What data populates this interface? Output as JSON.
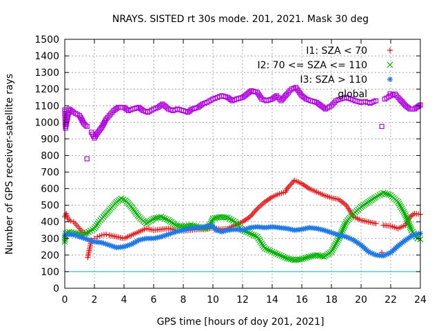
{
  "chart_data": {
    "type": "scatter",
    "title": "NRAYS. SISTED rt 30s mode. 201, 2021. Mask 30 deg",
    "xlabel": "GPS time [hours of doy 201, 2021]",
    "ylabel": "Number of GPS receiver-satellite rays",
    "xlim": [
      0,
      24
    ],
    "ylim": [
      0,
      1500
    ],
    "xticks": [
      0,
      2,
      4,
      6,
      8,
      10,
      12,
      14,
      16,
      18,
      20,
      22,
      24
    ],
    "yticks": [
      0,
      100,
      200,
      300,
      400,
      500,
      600,
      700,
      800,
      900,
      1000,
      1100,
      1200,
      1300,
      1400,
      1500
    ],
    "grid": true,
    "legend_position": "top-right",
    "reference_line": {
      "y": 100,
      "color": "#00c0c0"
    },
    "series": [
      {
        "name": "I1: SZA < 70",
        "marker": "plus",
        "color": "#e41a1c",
        "points": [
          [
            0,
            430
          ],
          [
            0.1,
            450
          ],
          [
            0.2,
            420
          ],
          [
            0.4,
            405
          ],
          [
            0.6,
            400
          ],
          [
            0.8,
            380
          ],
          [
            1.0,
            360
          ],
          [
            1.2,
            340
          ],
          [
            1.5,
            330
          ],
          [
            1.55,
            185
          ],
          [
            1.8,
            290
          ],
          [
            2.0,
            300
          ],
          [
            2.2,
            310
          ],
          [
            2.5,
            320
          ],
          [
            2.8,
            325
          ],
          [
            3.0,
            320
          ],
          [
            3.5,
            310
          ],
          [
            4.0,
            300
          ],
          [
            4.5,
            320
          ],
          [
            5.0,
            340
          ],
          [
            5.5,
            360
          ],
          [
            6.0,
            350
          ],
          [
            6.5,
            355
          ],
          [
            7.0,
            360
          ],
          [
            7.5,
            350
          ],
          [
            8.0,
            345
          ],
          [
            8.5,
            350
          ],
          [
            9.0,
            355
          ],
          [
            9.5,
            355
          ],
          [
            10.0,
            365
          ],
          [
            10.5,
            355
          ],
          [
            11.0,
            360
          ],
          [
            11.5,
            380
          ],
          [
            12.0,
            400
          ],
          [
            12.5,
            430
          ],
          [
            13.0,
            480
          ],
          [
            13.5,
            520
          ],
          [
            14.0,
            550
          ],
          [
            14.5,
            570
          ],
          [
            14.9,
            580
          ],
          [
            15.0,
            600
          ],
          [
            15.5,
            650
          ],
          [
            16.0,
            630
          ],
          [
            16.5,
            600
          ],
          [
            17.0,
            580
          ],
          [
            17.5,
            560
          ],
          [
            18.0,
            545
          ],
          [
            18.5,
            535
          ],
          [
            19.0,
            500
          ],
          [
            19.5,
            430
          ],
          [
            20.0,
            410
          ],
          [
            20.5,
            400
          ],
          [
            21.0,
            390
          ],
          [
            21.4,
            215
          ],
          [
            21.5,
            380
          ],
          [
            22.0,
            375
          ],
          [
            22.5,
            360
          ],
          [
            23.0,
            380
          ],
          [
            23.3,
            430
          ],
          [
            23.6,
            450
          ],
          [
            24.0,
            445
          ]
        ]
      },
      {
        "name": "I2: 70 <= SZA <= 110",
        "marker": "cross",
        "color": "#00b000",
        "points": [
          [
            0,
            280
          ],
          [
            0.05,
            330
          ],
          [
            0.3,
            340
          ],
          [
            0.6,
            335
          ],
          [
            0.9,
            330
          ],
          [
            1.2,
            320
          ],
          [
            1.6,
            340
          ],
          [
            2.0,
            360
          ],
          [
            2.3,
            400
          ],
          [
            2.6,
            430
          ],
          [
            3.0,
            470
          ],
          [
            3.5,
            520
          ],
          [
            3.8,
            540
          ],
          [
            4.1,
            530
          ],
          [
            4.5,
            490
          ],
          [
            5.0,
            430
          ],
          [
            5.5,
            390
          ],
          [
            6.0,
            420
          ],
          [
            6.5,
            430
          ],
          [
            7.0,
            410
          ],
          [
            7.5,
            380
          ],
          [
            8.0,
            370
          ],
          [
            8.5,
            380
          ],
          [
            9.0,
            370
          ],
          [
            9.5,
            360
          ],
          [
            9.8,
            380
          ],
          [
            10.0,
            420
          ],
          [
            10.5,
            430
          ],
          [
            11.0,
            425
          ],
          [
            11.5,
            400
          ],
          [
            12.0,
            350
          ],
          [
            12.5,
            330
          ],
          [
            13.0,
            310
          ],
          [
            13.5,
            240
          ],
          [
            14.0,
            220
          ],
          [
            14.5,
            200
          ],
          [
            15.0,
            180
          ],
          [
            15.5,
            170
          ],
          [
            16.0,
            175
          ],
          [
            16.5,
            190
          ],
          [
            17.0,
            200
          ],
          [
            17.5,
            190
          ],
          [
            18.0,
            220
          ],
          [
            18.5,
            300
          ],
          [
            19.0,
            400
          ],
          [
            19.5,
            450
          ],
          [
            20.0,
            490
          ],
          [
            20.5,
            520
          ],
          [
            21.0,
            550
          ],
          [
            21.5,
            575
          ],
          [
            22.0,
            560
          ],
          [
            22.5,
            520
          ],
          [
            23.0,
            440
          ],
          [
            23.4,
            350
          ],
          [
            23.8,
            300
          ],
          [
            24.0,
            295
          ]
        ]
      },
      {
        "name": "I3: SZA > 110",
        "marker": "star",
        "color": "#1e78e6",
        "points": [
          [
            0,
            320
          ],
          [
            0.3,
            325
          ],
          [
            0.7,
            320
          ],
          [
            1.0,
            310
          ],
          [
            1.5,
            295
          ],
          [
            2.0,
            280
          ],
          [
            2.5,
            275
          ],
          [
            3.0,
            260
          ],
          [
            3.5,
            245
          ],
          [
            4.0,
            250
          ],
          [
            4.5,
            265
          ],
          [
            5.0,
            290
          ],
          [
            5.5,
            300
          ],
          [
            6.0,
            300
          ],
          [
            6.5,
            310
          ],
          [
            7.0,
            325
          ],
          [
            7.5,
            340
          ],
          [
            8.0,
            350
          ],
          [
            8.5,
            360
          ],
          [
            9.0,
            365
          ],
          [
            9.5,
            370
          ],
          [
            9.9,
            380
          ],
          [
            10.2,
            350
          ],
          [
            10.6,
            340
          ],
          [
            11.0,
            350
          ],
          [
            11.5,
            355
          ],
          [
            12.0,
            350
          ],
          [
            12.5,
            365
          ],
          [
            13.0,
            370
          ],
          [
            13.5,
            365
          ],
          [
            14.0,
            370
          ],
          [
            14.5,
            365
          ],
          [
            15.0,
            360
          ],
          [
            15.5,
            350
          ],
          [
            16.0,
            355
          ],
          [
            16.5,
            365
          ],
          [
            17.0,
            360
          ],
          [
            17.5,
            350
          ],
          [
            18.0,
            335
          ],
          [
            18.5,
            320
          ],
          [
            19.0,
            310
          ],
          [
            19.5,
            290
          ],
          [
            20.0,
            260
          ],
          [
            20.5,
            220
          ],
          [
            21.0,
            200
          ],
          [
            21.5,
            195
          ],
          [
            22.0,
            215
          ],
          [
            22.5,
            255
          ],
          [
            23.0,
            290
          ],
          [
            23.5,
            320
          ],
          [
            24.0,
            330
          ]
        ]
      },
      {
        "name": "global",
        "marker": "square",
        "color": "#b000e0",
        "points": [
          [
            0,
            1075
          ],
          [
            0.05,
            965
          ],
          [
            0.3,
            1080
          ],
          [
            0.6,
            1060
          ],
          [
            1.0,
            1040
          ],
          [
            1.3,
            990
          ],
          [
            1.5,
            975
          ],
          [
            1.5,
            780
          ],
          [
            1.8,
            940
          ],
          [
            2.0,
            905
          ],
          [
            2.2,
            935
          ],
          [
            2.5,
            970
          ],
          [
            2.8,
            1020
          ],
          [
            3.0,
            1040
          ],
          [
            3.3,
            1070
          ],
          [
            3.6,
            1090
          ],
          [
            4.0,
            1090
          ],
          [
            4.3,
            1070
          ],
          [
            4.6,
            1080
          ],
          [
            5.0,
            1090
          ],
          [
            5.3,
            1070
          ],
          [
            5.6,
            1060
          ],
          [
            6.0,
            1080
          ],
          [
            6.3,
            1090
          ],
          [
            6.6,
            1110
          ],
          [
            7.0,
            1080
          ],
          [
            7.3,
            1070
          ],
          [
            7.6,
            1080
          ],
          [
            8.0,
            1070
          ],
          [
            8.3,
            1060
          ],
          [
            8.6,
            1080
          ],
          [
            9.0,
            1090
          ],
          [
            9.3,
            1110
          ],
          [
            9.6,
            1120
          ],
          [
            10.0,
            1140
          ],
          [
            10.3,
            1150
          ],
          [
            10.6,
            1160
          ],
          [
            11.0,
            1150
          ],
          [
            11.3,
            1130
          ],
          [
            11.6,
            1140
          ],
          [
            12.0,
            1150
          ],
          [
            12.3,
            1170
          ],
          [
            12.6,
            1190
          ],
          [
            13.0,
            1180
          ],
          [
            13.3,
            1140
          ],
          [
            13.6,
            1130
          ],
          [
            14.0,
            1140
          ],
          [
            14.3,
            1160
          ],
          [
            14.6,
            1130
          ],
          [
            15.0,
            1170
          ],
          [
            15.3,
            1200
          ],
          [
            15.6,
            1210
          ],
          [
            16.0,
            1160
          ],
          [
            16.3,
            1140
          ],
          [
            16.6,
            1130
          ],
          [
            17.0,
            1120
          ],
          [
            17.3,
            1100
          ],
          [
            17.6,
            1080
          ],
          [
            18.0,
            1100
          ],
          [
            18.3,
            1130
          ],
          [
            18.6,
            1140
          ],
          [
            19.0,
            1150
          ],
          [
            19.3,
            1140
          ],
          [
            19.6,
            1130
          ],
          [
            20.0,
            1120
          ],
          [
            20.3,
            1125
          ],
          [
            20.6,
            1115
          ],
          [
            21.0,
            1130
          ],
          [
            21.4,
            975
          ],
          [
            21.6,
            1140
          ],
          [
            22.0,
            1160
          ],
          [
            22.3,
            1170
          ],
          [
            22.6,
            1140
          ],
          [
            23.0,
            1100
          ],
          [
            23.3,
            1080
          ],
          [
            23.6,
            1080
          ],
          [
            24.0,
            1105
          ]
        ]
      }
    ]
  }
}
